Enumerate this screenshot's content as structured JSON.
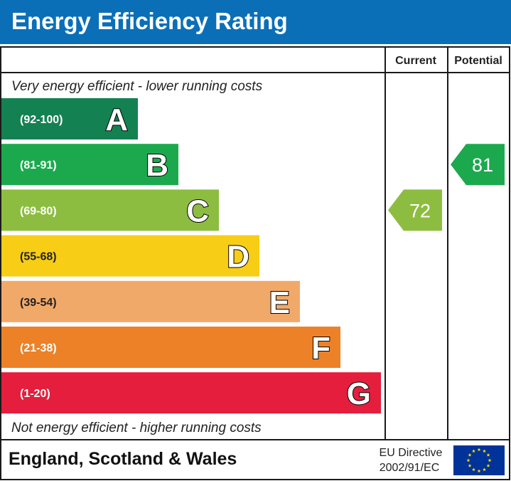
{
  "header": {
    "title": "Energy Efficiency Rating"
  },
  "columns": {
    "current": "Current",
    "potential": "Potential"
  },
  "notes": {
    "top": "Very energy efficient - lower running costs",
    "bottom": "Not energy efficient - higher running costs"
  },
  "chart_data": {
    "type": "bar",
    "categories": [
      "A",
      "B",
      "C",
      "D",
      "E",
      "F",
      "G"
    ],
    "bands": [
      {
        "letter": "A",
        "range": "(92-100)",
        "min": 92,
        "max": 100,
        "color": "#138151"
      },
      {
        "letter": "B",
        "range": "(81-91)",
        "min": 81,
        "max": 91,
        "color": "#1ca94e"
      },
      {
        "letter": "C",
        "range": "(69-80)",
        "min": 69,
        "max": 80,
        "color": "#8dbd40"
      },
      {
        "letter": "D",
        "range": "(55-68)",
        "min": 55,
        "max": 68,
        "color": "#f7cd16"
      },
      {
        "letter": "E",
        "range": "(39-54)",
        "min": 39,
        "max": 54,
        "color": "#f1a96a"
      },
      {
        "letter": "F",
        "range": "(21-38)",
        "min": 21,
        "max": 38,
        "color": "#ec8127"
      },
      {
        "letter": "G",
        "range": "(1-20)",
        "min": 1,
        "max": 20,
        "color": "#e41e3c"
      }
    ],
    "current": {
      "value": 72,
      "band": "C",
      "color": "#8dbd40"
    },
    "potential": {
      "value": 81,
      "band": "B",
      "color": "#1ca94e"
    }
  },
  "footer": {
    "region": "England, Scotland & Wales",
    "directive_line1": "EU Directive",
    "directive_line2": "2002/91/EC",
    "flag_icon": "eu-flag-icon",
    "flag_color": "#003399",
    "star_color": "#ffdd00"
  }
}
